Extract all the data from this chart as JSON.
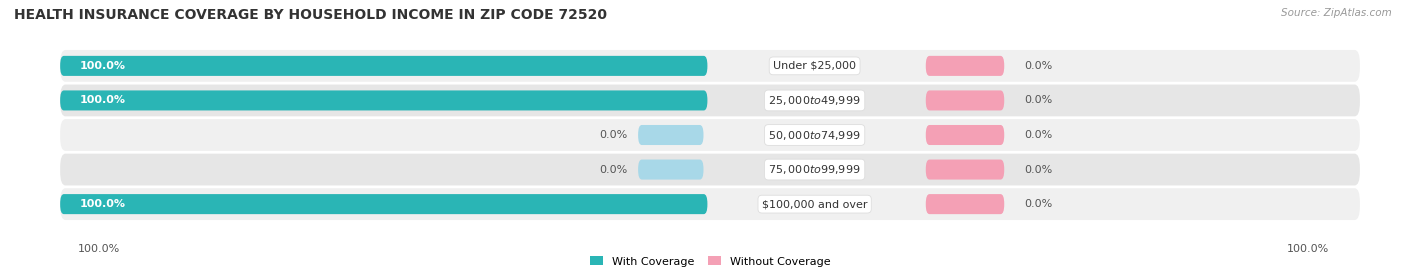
{
  "title": "HEALTH INSURANCE COVERAGE BY HOUSEHOLD INCOME IN ZIP CODE 72520",
  "source": "Source: ZipAtlas.com",
  "categories": [
    "Under $25,000",
    "$25,000 to $49,999",
    "$50,000 to $74,999",
    "$75,000 to $99,999",
    "$100,000 and over"
  ],
  "with_coverage": [
    100.0,
    100.0,
    0.0,
    0.0,
    100.0
  ],
  "without_coverage": [
    0.0,
    0.0,
    0.0,
    0.0,
    0.0
  ],
  "color_with_full": "#2ab5b5",
  "color_with_zero": "#a8d8e8",
  "color_without": "#f4a0b5",
  "row_bg_colors": [
    "#f0f0f0",
    "#e6e6e6",
    "#f0f0f0",
    "#e6e6e6",
    "#f0f0f0"
  ],
  "legend_with": "With Coverage",
  "legend_without": "Without Coverage",
  "bottom_left_label": "100.0%",
  "bottom_right_label": "100.0%",
  "title_fontsize": 10,
  "label_fontsize": 8,
  "tick_fontsize": 8,
  "pct_fontsize": 8
}
